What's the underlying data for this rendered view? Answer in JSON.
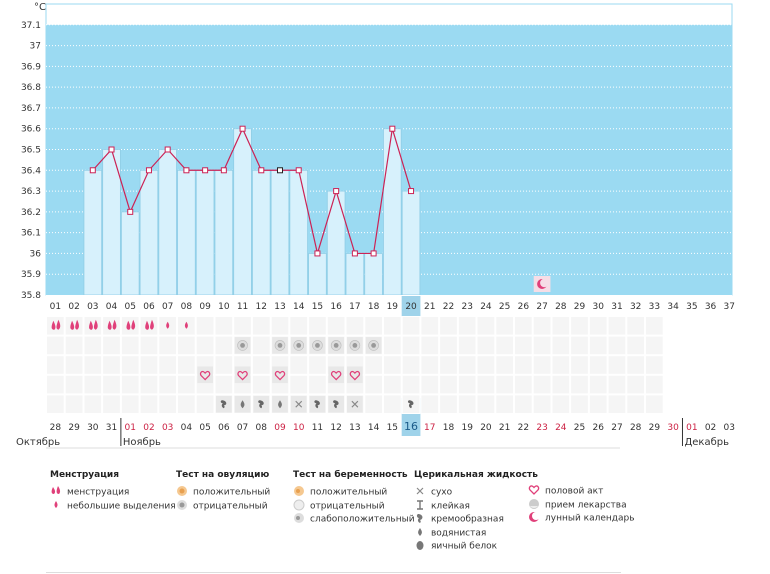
{
  "chart_data": {
    "type": "bar",
    "yunit": "°C",
    "ylim": [
      35.8,
      37.1
    ],
    "yticks": [
      "35.8",
      "35.9",
      "36",
      "36.1",
      "36.2",
      "36.3",
      "36.4",
      "36.5",
      "36.6",
      "36.7",
      "36.8",
      "36.9",
      "37",
      "37.1"
    ],
    "cycle_days": [
      "01",
      "02",
      "03",
      "04",
      "05",
      "06",
      "07",
      "08",
      "09",
      "10",
      "11",
      "12",
      "13",
      "14",
      "15",
      "16",
      "17",
      "18",
      "19",
      "20",
      "21",
      "22",
      "23",
      "24",
      "25",
      "26",
      "27",
      "28",
      "29",
      "30",
      "31",
      "32",
      "33",
      "34",
      "35",
      "36",
      "37"
    ],
    "dates": [
      "28",
      "29",
      "30",
      "31",
      "01",
      "02",
      "03",
      "04",
      "05",
      "06",
      "07",
      "08",
      "09",
      "10",
      "11",
      "12",
      "13",
      "14",
      "15",
      "16",
      "17",
      "18",
      "19",
      "20",
      "21",
      "22",
      "23",
      "24",
      "25",
      "26",
      "27",
      "28",
      "29",
      "30",
      "01",
      "02",
      "03"
    ],
    "date_colors": [
      "n",
      "n",
      "n",
      "n",
      "r",
      "r",
      "r",
      "n",
      "n",
      "n",
      "n",
      "n",
      "r",
      "r",
      "n",
      "n",
      "n",
      "n",
      "n",
      "n",
      "r",
      "n",
      "n",
      "n",
      "n",
      "n",
      "r",
      "r",
      "n",
      "n",
      "n",
      "n",
      "n",
      "r",
      "r",
      "n",
      "n"
    ],
    "months": [
      {
        "label": "Октябрь",
        "start_index": 0
      },
      {
        "label": "Ноябрь",
        "start_index": 4
      },
      {
        "label": "Декабрь",
        "start_index": 34
      }
    ],
    "temperatures": [
      null,
      null,
      36.4,
      36.5,
      36.2,
      36.4,
      36.5,
      36.4,
      36.4,
      36.4,
      36.6,
      36.4,
      36.4,
      36.4,
      36.0,
      36.3,
      36.0,
      36.0,
      36.6,
      36.3
    ],
    "highlight_day_index": 19,
    "highlight_date_label": "16",
    "lunar_marker_day_index": 26,
    "rows": {
      "menstruation": [
        "full",
        "full",
        "full",
        "full",
        "full",
        "full",
        "light",
        "light",
        null,
        null,
        null,
        null,
        null,
        null,
        null,
        null,
        null,
        null,
        null,
        null
      ],
      "ovulation_test": [
        null,
        null,
        null,
        null,
        null,
        null,
        null,
        null,
        null,
        null,
        "negative",
        null,
        "negative",
        "negative",
        "negative",
        "negative",
        "negative",
        "negative",
        null,
        null
      ],
      "intercourse": [
        null,
        null,
        null,
        null,
        null,
        null,
        null,
        null,
        "heart",
        null,
        "heart",
        null,
        "heart",
        null,
        null,
        "heart",
        "heart",
        null,
        null,
        null
      ],
      "cervical_fluid": [
        null,
        null,
        null,
        null,
        null,
        null,
        null,
        null,
        null,
        "creamy",
        "watery",
        "creamy",
        "watery",
        "dry",
        "creamy",
        "creamy",
        "dry",
        null,
        null,
        "creamy"
      ]
    }
  },
  "legend": {
    "menstruation": {
      "title": "Менструация",
      "items": [
        "менструация",
        "небольшие выделения"
      ]
    },
    "ovulation": {
      "title": "Тест на овуляцию",
      "items": [
        "положительный",
        "отрицательный"
      ]
    },
    "pregnancy": {
      "title": "Тест на беременность",
      "items": [
        "положительный",
        "отрицательный",
        "слабоположительный"
      ]
    },
    "cervical": {
      "title": "Церикальная жидкость",
      "items": [
        "сухо",
        "клейкая",
        "кремообразная",
        "водянистая",
        "яичный белок"
      ]
    },
    "other": {
      "items": [
        "половой акт",
        "прием лекарства",
        "лунный календарь"
      ]
    }
  },
  "colors": {
    "plot_bg": "#9bdaf2",
    "bar_fill": "#d7f1fc",
    "bar_stroke": "#8fcde6",
    "line": "#cc2255",
    "grid": "#ffffff",
    "accent_pink": "#e0407a",
    "highlight": "#9fd3ea",
    "date_red": "#cc2244"
  }
}
